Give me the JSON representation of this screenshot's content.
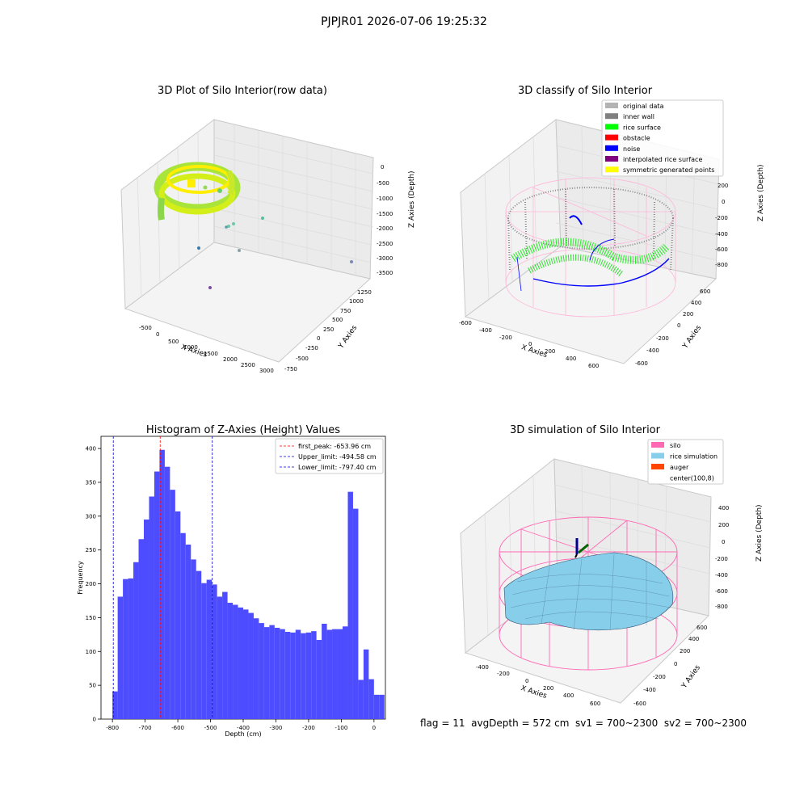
{
  "suptitle": "PJPJR01 2026-07-06 19:25:32",
  "footer": "flag = 11  avgDepth = 572 cm  sv1 = 700~2300  sv2 = 700~2300",
  "colors": {
    "hist_bar": "#4d4dff",
    "first_peak": "#ff0000",
    "limit_line": "#0000cc",
    "silo": "#ff69b4",
    "rice": "#87ceeb",
    "noise": "#0000ff",
    "rice_surface": "#00ff00",
    "inner_wall": "#808080"
  },
  "panels": {
    "raw": {
      "title": "3D Plot of Silo Interior(row data)",
      "xlabel": "X Axies",
      "ylabel": "Y Axies",
      "zlabel": "Z Axies (Depth)",
      "x_ticks": [
        "-500",
        "0",
        "500",
        "1000",
        "1500",
        "2000",
        "2500",
        "3000"
      ],
      "y_ticks": [
        "-750",
        "-500",
        "-250",
        "0",
        "250",
        "500",
        "750",
        "1000",
        "1250"
      ],
      "z_ticks": [
        "0",
        "-500",
        "-1000",
        "-1500",
        "-2000",
        "-2500",
        "-3000",
        "-3500"
      ]
    },
    "classify": {
      "title": "3D classify of Silo Interior",
      "xlabel": "X Axies",
      "ylabel": "Y Axies",
      "zlabel": "Z Axies (Depth)",
      "x_ticks": [
        "-600",
        "-400",
        "-200",
        "0",
        "200",
        "400",
        "600"
      ],
      "y_ticks": [
        "-600",
        "-400",
        "-200",
        "0",
        "200",
        "400",
        "600"
      ],
      "z_ticks": [
        "200",
        "0",
        "-200",
        "-400",
        "-600",
        "-800"
      ],
      "legend": [
        {
          "label": "original data",
          "color": "#b3b3b3"
        },
        {
          "label": "inner wall",
          "color": "#808080"
        },
        {
          "label": "rice surface",
          "color": "#00ff00"
        },
        {
          "label": "obstacle",
          "color": "#ff0000"
        },
        {
          "label": "noise",
          "color": "#0000ff"
        },
        {
          "label": "interpolated rice surface",
          "color": "#800080"
        },
        {
          "label": "symmetric generated points",
          "color": "#ffff00"
        }
      ]
    },
    "simulation": {
      "title": "3D simulation of Silo Interior",
      "xlabel": "X Axies",
      "ylabel": "Y Axies",
      "zlabel": "Z Axies (Depth)",
      "x_ticks": [
        "-400",
        "-200",
        "0",
        "200",
        "400",
        "600"
      ],
      "y_ticks": [
        "-600",
        "-400",
        "-200",
        "0",
        "200",
        "400",
        "600"
      ],
      "z_ticks": [
        "400",
        "200",
        "0",
        "-200",
        "-400",
        "-600",
        "-800"
      ],
      "legend": [
        {
          "label": "silo",
          "color": "#ff69b4"
        },
        {
          "label": "rice simulation",
          "color": "#87ceeb"
        },
        {
          "label": "auger",
          "color": "#ff4500"
        },
        {
          "label": "center(100,8)",
          "color": ""
        }
      ]
    }
  },
  "chart_data": {
    "type": "bar",
    "title": "Histogram of Z-Axies (Height) Values",
    "xlabel": "Depth (cm)",
    "ylabel": "Frequency",
    "xlim": [
      -835,
      35
    ],
    "ylim": [
      0,
      418
    ],
    "x_ticks": [
      -800,
      -700,
      -600,
      -500,
      -400,
      -300,
      -200,
      -100,
      0
    ],
    "y_ticks": [
      0,
      50,
      100,
      150,
      200,
      250,
      300,
      350,
      400
    ],
    "bin_start": -800,
    "bin_width": 16,
    "values": [
      41,
      181,
      207,
      208,
      232,
      266,
      295,
      329,
      366,
      398,
      373,
      339,
      307,
      275,
      258,
      236,
      219,
      201,
      206,
      199,
      181,
      188,
      172,
      169,
      165,
      162,
      157,
      149,
      142,
      136,
      139,
      135,
      133,
      129,
      128,
      132,
      127,
      128,
      130,
      117,
      141,
      132,
      133,
      133,
      137,
      336,
      311,
      58,
      103,
      59,
      36,
      36
    ],
    "lines": [
      {
        "label": "first_peak: -653.96 cm",
        "x": -653.96,
        "color": "#ff0000"
      },
      {
        "label": "Upper_limit: -494.58 cm",
        "x": -494.58,
        "color": "#0000cc"
      },
      {
        "label": "Lower_limit: -797.40 cm",
        "x": -797.4,
        "color": "#0000cc"
      }
    ]
  }
}
